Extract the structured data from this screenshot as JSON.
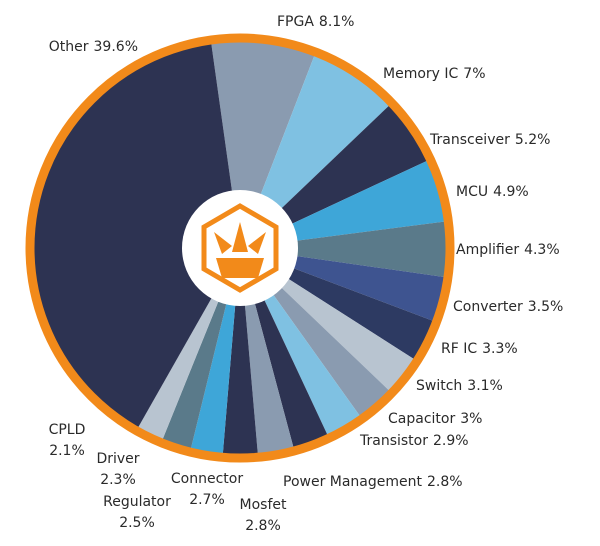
{
  "chart_data": {
    "type": "pie",
    "categories": [
      "FPGA",
      "Memory IC",
      "Transceiver",
      "MCU",
      "Amplifier",
      "Converter",
      "RF IC",
      "Switch",
      "Capacitor",
      "Transistor",
      "Power Management",
      "Mosfet",
      "Connector",
      "Regulator",
      "Driver",
      "CPLD",
      "Other"
    ],
    "values": [
      8.1,
      7,
      5.2,
      4.9,
      4.3,
      3.5,
      3.3,
      3.1,
      3,
      2.9,
      2.8,
      2.8,
      2.7,
      2.5,
      2.3,
      2.1,
      39.6
    ],
    "value_labels": [
      "8.1%",
      "7%",
      "5.2%",
      "4.9%",
      "4.3%",
      "3.5%",
      "3.3%",
      "3.1%",
      "3%",
      "2.9%",
      "2.8%",
      "2.8%",
      "2.7%",
      "2.5%",
      "2.3%",
      "2.1%",
      "39.6%"
    ],
    "colors": [
      "#8a9bb0",
      "#7fc1e2",
      "#2d3352",
      "#3ea6d8",
      "#5a7a8a",
      "#3e5490",
      "#2d3a62",
      "#b8c4d0",
      "#8a9bb0",
      "#7fc1e2",
      "#2d3352",
      "#8a9bb0",
      "#2d3352",
      "#3ea6d8",
      "#5a7a8a",
      "#b8c4d0",
      "#2d3352"
    ],
    "ring_color": "#f28a1a"
  }
}
